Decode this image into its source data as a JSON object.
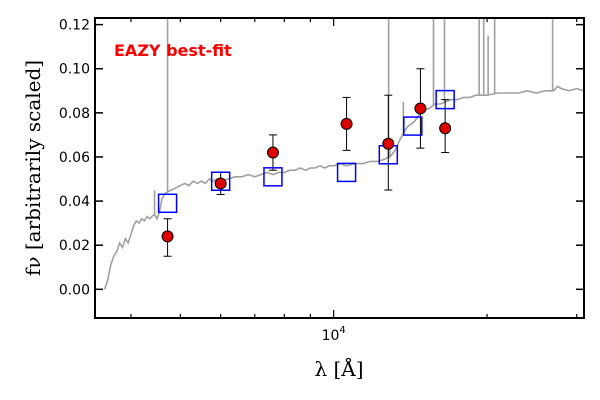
{
  "chart_data": {
    "type": "scatter",
    "title": "",
    "xlabel": "λ [Å]",
    "ylabel": "fν [arbitrarily scaled]",
    "xscale": "log",
    "xlim": [
      3400,
      31000
    ],
    "ylim": [
      -0.013,
      0.123
    ],
    "x_tick_labels": [
      {
        "value": 10000,
        "base": "10",
        "exp": "4"
      }
    ],
    "y_ticks": [
      0.0,
      0.02,
      0.04,
      0.06,
      0.08,
      0.1,
      0.12
    ],
    "y_tick_labels": [
      "0.00",
      "0.02",
      "0.04",
      "0.06",
      "0.08",
      "0.10",
      "0.12"
    ],
    "annotation": {
      "text": "EAZY best-fit",
      "color": "#ff0000"
    },
    "colors": {
      "template": "#a0a0a0",
      "model": "#0000ff",
      "observed_fill": "#dd0000",
      "observed_edge": "#000000",
      "errorbar": "#000000",
      "frame": "#000000"
    },
    "series": [
      {
        "kind": "template-line",
        "x": [
          3550,
          3600,
          3650,
          3700,
          3750,
          3800,
          3850,
          3900,
          3950,
          4000,
          4050,
          4100,
          4150,
          4200,
          4250,
          4300,
          4350,
          4400,
          4450,
          4500,
          4550,
          4600,
          4650,
          4700,
          4800,
          4900,
          5000,
          5100,
          5200,
          5300,
          5400,
          5500,
          5600,
          5700,
          5800,
          5900,
          6000,
          6200,
          6400,
          6600,
          6800,
          7000,
          7200,
          7400,
          7600,
          7800,
          8000,
          8200,
          8400,
          8600,
          8800,
          9000,
          9200,
          9400,
          9600,
          9800,
          10000,
          10300,
          10600,
          11000,
          11400,
          11800,
          12200,
          12600,
          12800,
          12850,
          12900,
          13000,
          13200,
          13500,
          13800,
          14000,
          14200,
          14400,
          14600,
          14800,
          15000,
          15400,
          15800,
          16200,
          16600,
          17000,
          17500,
          18000,
          18500,
          19000,
          19500,
          20000,
          21000,
          22000,
          23000,
          24000,
          25000,
          26000,
          27000,
          27500,
          28000,
          29000,
          30000,
          31000
        ],
        "y": [
          0.0,
          0.004,
          0.011,
          0.015,
          0.017,
          0.021,
          0.019,
          0.023,
          0.021,
          0.025,
          0.029,
          0.031,
          0.03,
          0.032,
          0.031,
          0.033,
          0.032,
          0.033,
          0.034,
          0.032,
          0.035,
          0.041,
          0.043,
          0.044,
          0.045,
          0.046,
          0.047,
          0.048,
          0.047,
          0.049,
          0.048,
          0.049,
          0.048,
          0.05,
          0.049,
          0.05,
          0.049,
          0.05,
          0.051,
          0.051,
          0.052,
          0.051,
          0.052,
          0.053,
          0.052,
          0.053,
          0.053,
          0.054,
          0.054,
          0.055,
          0.054,
          0.055,
          0.055,
          0.056,
          0.055,
          0.056,
          0.056,
          0.057,
          0.056,
          0.057,
          0.057,
          0.058,
          0.058,
          0.059,
          0.06,
          0.068,
          0.06,
          0.061,
          0.063,
          0.068,
          0.072,
          0.074,
          0.075,
          0.076,
          0.078,
          0.08,
          0.081,
          0.082,
          0.084,
          0.084,
          0.085,
          0.086,
          0.086,
          0.087,
          0.087,
          0.088,
          0.088,
          0.088,
          0.089,
          0.089,
          0.089,
          0.09,
          0.089,
          0.09,
          0.09,
          0.092,
          0.091,
          0.09,
          0.091,
          0.09
        ],
        "spikes": [
          {
            "x": 4720,
            "base": 0.044,
            "top": 0.123
          },
          {
            "x": 4450,
            "base": 0.034,
            "top": 0.045
          },
          {
            "x": 12820,
            "base": 0.06,
            "top": 0.123
          },
          {
            "x": 13700,
            "base": 0.07,
            "top": 0.085
          },
          {
            "x": 15700,
            "base": 0.083,
            "top": 0.123
          },
          {
            "x": 16500,
            "base": 0.085,
            "top": 0.123
          },
          {
            "x": 19300,
            "base": 0.088,
            "top": 0.123
          },
          {
            "x": 19700,
            "base": 0.088,
            "top": 0.123
          },
          {
            "x": 20100,
            "base": 0.088,
            "top": 0.115
          },
          {
            "x": 20700,
            "base": 0.089,
            "top": 0.123
          },
          {
            "x": 26900,
            "base": 0.09,
            "top": 0.123
          }
        ]
      },
      {
        "kind": "model-squares",
        "x": [
          4720,
          6000,
          7600,
          10600,
          12800,
          14300,
          16550
        ],
        "y": [
          0.039,
          0.049,
          0.051,
          0.053,
          0.061,
          0.074,
          0.086
        ]
      },
      {
        "kind": "observed-points",
        "x": [
          4720,
          6000,
          7600,
          10600,
          12800,
          14800,
          16550
        ],
        "y": [
          0.024,
          0.048,
          0.062,
          0.075,
          0.066,
          0.082,
          0.073
        ],
        "yerr_low": [
          0.009,
          0.005,
          0.008,
          0.012,
          0.021,
          0.018,
          0.011
        ],
        "yerr_high": [
          0.008,
          0.005,
          0.008,
          0.012,
          0.022,
          0.018,
          0.013
        ]
      }
    ]
  }
}
